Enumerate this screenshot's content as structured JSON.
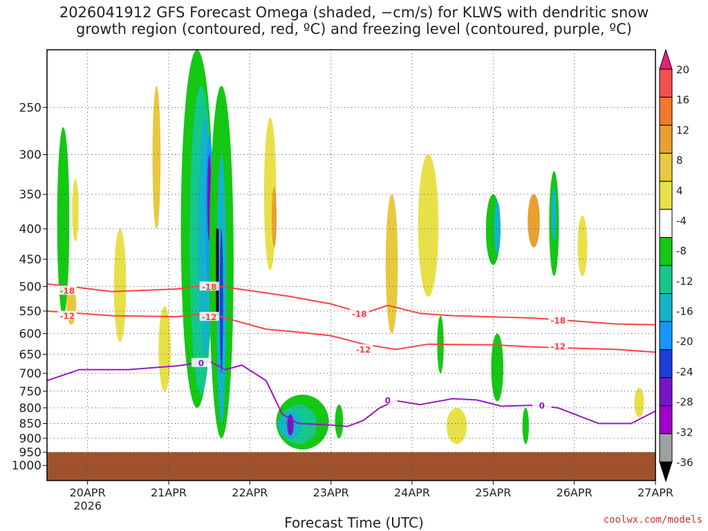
{
  "title_line1": "2026041912 GFS Forecast Omega (shaded, −cm/s) for KLWS with dendritic snow",
  "title_line2": "growth region (contoured, red, ºC) and freezing level (contoured, purple, ºC)",
  "watermark": "coolwx.com/models",
  "chart_data": {
    "type": "heatmap",
    "xlabel": "Forecast Time (UTC)",
    "ylabel": "",
    "x_range": [
      "2026-04-19T12",
      "2026-04-27T00"
    ],
    "x_ticks": [
      {
        "label": "20APR",
        "sub": "2026",
        "day": 20
      },
      {
        "label": "21APR",
        "sub": "",
        "day": 21
      },
      {
        "label": "22APR",
        "sub": "",
        "day": 22
      },
      {
        "label": "23APR",
        "sub": "",
        "day": 23
      },
      {
        "label": "24APR",
        "sub": "",
        "day": 24
      },
      {
        "label": "25APR",
        "sub": "",
        "day": 25
      },
      {
        "label": "26APR",
        "sub": "",
        "day": 26
      },
      {
        "label": "27APR",
        "sub": "",
        "day": 27
      }
    ],
    "y_scale": "log-pressure (hPa), inverted",
    "y_range": [
      1050,
      200
    ],
    "y_ticks": [
      250,
      300,
      350,
      400,
      450,
      500,
      550,
      600,
      650,
      700,
      750,
      800,
      850,
      900,
      950,
      1000
    ],
    "grid": true,
    "colorbar": {
      "labels": [
        "20",
        "16",
        "12",
        "8",
        "4",
        "-4",
        "-8",
        "-12",
        "-16",
        "-20",
        "-24",
        "-28",
        "-32",
        "-36"
      ],
      "colors": [
        "#e8207c",
        "#f05050",
        "#f07a2a",
        "#e8a030",
        "#e8c840",
        "#e8e048",
        "#ffffff",
        "#14c814",
        "#14c88c",
        "#14b4c8",
        "#1496ff",
        "#1e3cdc",
        "#7814c8",
        "#a000c8",
        "#a0a0a0",
        "#000000"
      ]
    },
    "terrain_color": "#a0522d",
    "terrain_top_hPa": 950,
    "contours": [
      {
        "label": "-18",
        "color": "#ff4040",
        "points": [
          [
            0,
            495
          ],
          [
            0.8,
            510
          ],
          [
            1.6,
            505
          ],
          [
            2.0,
            497
          ],
          [
            2.5,
            508
          ],
          [
            3.0,
            520
          ],
          [
            3.5,
            535
          ],
          [
            3.9,
            555
          ],
          [
            4.2,
            538
          ],
          [
            4.6,
            555
          ],
          [
            5.0,
            560
          ],
          [
            6.0,
            565
          ],
          [
            7.0,
            578
          ],
          [
            7.5,
            580
          ]
        ]
      },
      {
        "label": "-12",
        "color": "#ff4040",
        "points": [
          [
            0,
            550
          ],
          [
            0.8,
            560
          ],
          [
            1.6,
            562
          ],
          [
            2.0,
            555
          ],
          [
            2.3,
            570
          ],
          [
            2.7,
            590
          ],
          [
            3.0,
            595
          ],
          [
            3.5,
            605
          ],
          [
            3.9,
            625
          ],
          [
            4.3,
            638
          ],
          [
            4.7,
            625
          ],
          [
            5.0,
            626
          ],
          [
            5.5,
            627
          ],
          [
            6.0,
            632
          ],
          [
            6.5,
            635
          ],
          [
            7.0,
            638
          ],
          [
            7.5,
            645
          ]
        ]
      },
      {
        "label": "0",
        "color": "#9618c8",
        "points": [
          [
            0,
            720
          ],
          [
            0.4,
            690
          ],
          [
            1.0,
            690
          ],
          [
            1.6,
            680
          ],
          [
            2.0,
            668
          ],
          [
            2.2,
            690
          ],
          [
            2.4,
            678
          ],
          [
            2.7,
            720
          ],
          [
            2.9,
            820
          ],
          [
            3.1,
            850
          ],
          [
            3.5,
            855
          ],
          [
            3.7,
            860
          ],
          [
            3.9,
            840
          ],
          [
            4.1,
            800
          ],
          [
            4.3,
            778
          ],
          [
            4.6,
            790
          ],
          [
            5.0,
            772
          ],
          [
            5.3,
            776
          ],
          [
            5.6,
            795
          ],
          [
            6.0,
            792
          ],
          [
            6.3,
            800
          ],
          [
            6.8,
            850
          ],
          [
            7.2,
            850
          ],
          [
            7.5,
            810
          ]
        ]
      }
    ],
    "contour_labels": [
      {
        "text": "-18",
        "x": 0.25,
        "p": 508
      },
      {
        "text": "-12",
        "x": 0.25,
        "p": 560
      },
      {
        "text": "-18",
        "x": 2.0,
        "p": 500
      },
      {
        "text": "-12",
        "x": 2.0,
        "p": 562
      },
      {
        "text": "-18",
        "x": 3.85,
        "p": 555
      },
      {
        "text": "-12",
        "x": 3.9,
        "p": 637
      },
      {
        "text": "-18",
        "x": 6.3,
        "p": 570
      },
      {
        "text": "-12",
        "x": 6.3,
        "p": 630
      },
      {
        "text": "0",
        "x": 1.9,
        "p": 672
      },
      {
        "text": "0",
        "x": 4.2,
        "p": 776
      },
      {
        "text": "0",
        "x": 6.1,
        "p": 792
      }
    ],
    "omega_cells": [
      {
        "x": 0.2,
        "p": 300,
        "w": 0.15,
        "h": [
          270,
          560
        ],
        "c": "#14c814"
      },
      {
        "x": 0.35,
        "p": 300,
        "w": 0.08,
        "h": [
          330,
          420
        ],
        "c": "#e8e048"
      },
      {
        "x": 0.3,
        "p": 540,
        "w": 0.12,
        "h": [
          500,
          580
        ],
        "c": "#e8c840"
      },
      {
        "x": 0.9,
        "p": 560,
        "w": 0.15,
        "h": [
          400,
          620
        ],
        "c": "#e8e048"
      },
      {
        "x": 1.35,
        "p": 250,
        "w": 0.1,
        "h": [
          230,
          400
        ],
        "c": "#e8c840"
      },
      {
        "x": 1.45,
        "p": 600,
        "w": 0.15,
        "h": [
          540,
          750
        ],
        "c": "#e8e048"
      },
      {
        "x": 1.85,
        "p": 450,
        "w": 0.4,
        "h": [
          200,
          800
        ],
        "c": "#14c814"
      },
      {
        "x": 1.9,
        "p": 450,
        "w": 0.28,
        "h": [
          230,
          760
        ],
        "c": "#14c88c"
      },
      {
        "x": 1.95,
        "p": 420,
        "w": 0.18,
        "h": [
          260,
          650
        ],
        "c": "#14b4c8"
      },
      {
        "x": 2.0,
        "p": 380,
        "w": 0.1,
        "h": [
          280,
          500
        ],
        "c": "#1496ff"
      },
      {
        "x": 2.0,
        "p": 350,
        "w": 0.05,
        "h": [
          300,
          420
        ],
        "c": "#7814c8"
      },
      {
        "x": 2.15,
        "p": 400,
        "w": 0.3,
        "h": [
          230,
          900
        ],
        "c": "#14c814"
      },
      {
        "x": 2.15,
        "p": 500,
        "w": 0.12,
        "h": [
          300,
          850
        ],
        "c": "#14b4c8"
      },
      {
        "x": 2.15,
        "p": 500,
        "w": 0.04,
        "h": [
          400,
          700
        ],
        "c": "#1e3cdc"
      },
      {
        "x": 2.75,
        "p": 380,
        "w": 0.15,
        "h": [
          260,
          470
        ],
        "c": "#e8e048"
      },
      {
        "x": 2.8,
        "p": 380,
        "w": 0.06,
        "h": [
          340,
          430
        ],
        "c": "#e8a030"
      },
      {
        "x": 3.15,
        "p": 850,
        "w": 0.65,
        "h": [
          760,
          940
        ],
        "c": "#14c814"
      },
      {
        "x": 3.1,
        "p": 860,
        "w": 0.45,
        "h": [
          790,
          920
        ],
        "c": "#14c88c"
      },
      {
        "x": 3.0,
        "p": 850,
        "w": 0.3,
        "h": [
          810,
          900
        ],
        "c": "#14b4c8"
      },
      {
        "x": 3.0,
        "p": 860,
        "w": 0.08,
        "h": [
          820,
          890
        ],
        "c": "#7814c8"
      },
      {
        "x": 3.6,
        "p": 850,
        "w": 0.1,
        "h": [
          790,
          900
        ],
        "c": "#14c814"
      },
      {
        "x": 4.25,
        "p": 450,
        "w": 0.15,
        "h": [
          350,
          600
        ],
        "c": "#e8c840"
      },
      {
        "x": 4.7,
        "p": 430,
        "w": 0.25,
        "h": [
          300,
          520
        ],
        "c": "#e8e048"
      },
      {
        "x": 4.85,
        "p": 620,
        "w": 0.08,
        "h": [
          560,
          700
        ],
        "c": "#14c814"
      },
      {
        "x": 5.5,
        "p": 420,
        "w": 0.18,
        "h": [
          350,
          460
        ],
        "c": "#14c814"
      },
      {
        "x": 5.55,
        "p": 400,
        "w": 0.08,
        "h": [
          360,
          440
        ],
        "c": "#14b4c8"
      },
      {
        "x": 5.55,
        "p": 650,
        "w": 0.15,
        "h": [
          600,
          780
        ],
        "c": "#14c814"
      },
      {
        "x": 5.05,
        "p": 860,
        "w": 0.25,
        "h": [
          800,
          920
        ],
        "c": "#e8e048"
      },
      {
        "x": 5.9,
        "p": 860,
        "w": 0.08,
        "h": [
          800,
          920
        ],
        "c": "#14c814"
      },
      {
        "x": 6.0,
        "p": 390,
        "w": 0.15,
        "h": [
          350,
          430
        ],
        "c": "#e8a030"
      },
      {
        "x": 6.25,
        "p": 400,
        "w": 0.12,
        "h": [
          320,
          480
        ],
        "c": "#14c814"
      },
      {
        "x": 6.25,
        "p": 370,
        "w": 0.06,
        "h": [
          340,
          420
        ],
        "c": "#14b4c8"
      },
      {
        "x": 6.6,
        "p": 420,
        "w": 0.12,
        "h": [
          380,
          480
        ],
        "c": "#e8e048"
      },
      {
        "x": 7.3,
        "p": 780,
        "w": 0.12,
        "h": [
          740,
          830
        ],
        "c": "#e8e048"
      }
    ]
  }
}
